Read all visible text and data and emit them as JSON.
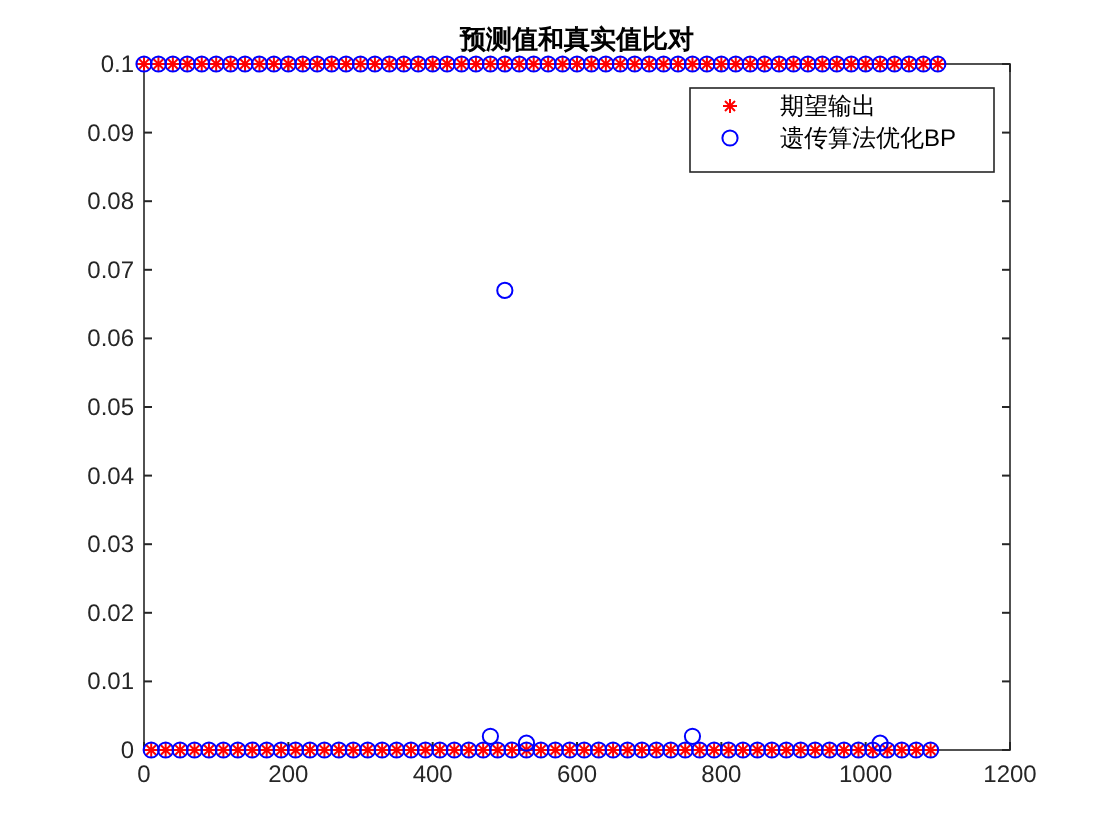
{
  "chart_data": {
    "type": "scatter",
    "title": "预测值和真实值比对",
    "xlim": [
      0,
      1200
    ],
    "xticks": [
      0,
      200,
      400,
      600,
      800,
      1000,
      1200
    ],
    "ylim": [
      0,
      0.1
    ],
    "yticks": [
      {
        "value": 0,
        "label": "0"
      },
      {
        "value": 0.01,
        "label": "0.01"
      },
      {
        "value": 0.02,
        "label": "0.02"
      },
      {
        "value": 0.03,
        "label": "0.03"
      },
      {
        "value": 0.04,
        "label": "0.04"
      },
      {
        "value": 0.05,
        "label": "0.05"
      },
      {
        "value": 0.06,
        "label": "0.06"
      },
      {
        "value": 0.07,
        "label": "0.07"
      },
      {
        "value": 0.08,
        "label": "0.08"
      },
      {
        "value": 0.09,
        "label": "0.09"
      },
      {
        "value": 0.1,
        "label": "0.1"
      }
    ],
    "grid": false,
    "legend": "top right",
    "series": [
      {
        "name": "期望输出",
        "color": "#ff0000",
        "marker": "cross",
        "x": [
          0,
          20,
          40,
          60,
          80,
          100,
          120,
          140,
          160,
          180,
          200,
          220,
          240,
          260,
          280,
          300,
          320,
          340,
          360,
          380,
          400,
          420,
          440,
          460,
          480,
          500,
          520,
          540,
          560,
          580,
          600,
          620,
          640,
          660,
          680,
          700,
          720,
          740,
          760,
          780,
          800,
          820,
          840,
          860,
          880,
          900,
          920,
          940,
          960,
          980,
          1000,
          1020,
          1040,
          1060,
          1080,
          1100,
          10,
          30,
          50,
          70,
          90,
          110,
          130,
          150,
          170,
          190,
          210,
          230,
          250,
          270,
          290,
          310,
          330,
          350,
          370,
          390,
          410,
          430,
          450,
          470,
          490,
          510,
          530,
          550,
          570,
          590,
          610,
          630,
          650,
          670,
          690,
          710,
          730,
          750,
          770,
          790,
          810,
          830,
          850,
          870,
          890,
          910,
          930,
          950,
          970,
          990,
          1010,
          1030,
          1050,
          1070,
          1090
        ],
        "values": [
          0.1,
          0.1,
          0.1,
          0.1,
          0.1,
          0.1,
          0.1,
          0.1,
          0.1,
          0.1,
          0.1,
          0.1,
          0.1,
          0.1,
          0.1,
          0.1,
          0.1,
          0.1,
          0.1,
          0.1,
          0.1,
          0.1,
          0.1,
          0.1,
          0.1,
          0.1,
          0.1,
          0.1,
          0.1,
          0.1,
          0.1,
          0.1,
          0.1,
          0.1,
          0.1,
          0.1,
          0.1,
          0.1,
          0.1,
          0.1,
          0.1,
          0.1,
          0.1,
          0.1,
          0.1,
          0.1,
          0.1,
          0.1,
          0.1,
          0.1,
          0.1,
          0.1,
          0.1,
          0.1,
          0.1,
          0.1,
          0,
          0,
          0,
          0,
          0,
          0,
          0,
          0,
          0,
          0,
          0,
          0,
          0,
          0,
          0,
          0,
          0,
          0,
          0,
          0,
          0,
          0,
          0,
          0,
          0,
          0,
          0,
          0,
          0,
          0,
          0,
          0,
          0,
          0,
          0,
          0,
          0,
          0,
          0,
          0,
          0,
          0,
          0,
          0,
          0,
          0,
          0,
          0,
          0,
          0,
          0,
          0,
          0,
          0,
          0
        ]
      },
      {
        "name": "遗传算法优化BP",
        "color": "#0000ff",
        "marker": "circle",
        "x": [
          0,
          20,
          40,
          60,
          80,
          100,
          120,
          140,
          160,
          180,
          200,
          220,
          240,
          260,
          280,
          300,
          320,
          340,
          360,
          380,
          400,
          420,
          440,
          460,
          480,
          500,
          520,
          540,
          560,
          580,
          600,
          620,
          640,
          660,
          680,
          700,
          720,
          740,
          760,
          780,
          800,
          820,
          840,
          860,
          880,
          900,
          920,
          940,
          960,
          980,
          1000,
          1020,
          1040,
          1060,
          1080,
          1100,
          10,
          30,
          50,
          70,
          90,
          110,
          130,
          150,
          170,
          190,
          210,
          230,
          250,
          270,
          290,
          310,
          330,
          350,
          370,
          390,
          410,
          430,
          450,
          470,
          490,
          510,
          530,
          550,
          570,
          590,
          610,
          630,
          650,
          670,
          690,
          710,
          730,
          750,
          770,
          790,
          810,
          830,
          850,
          870,
          890,
          910,
          930,
          950,
          970,
          990,
          1010,
          1030,
          1050,
          1070,
          1090,
          480,
          500,
          530,
          760,
          1020
        ],
        "values": [
          0.1,
          0.1,
          0.1,
          0.1,
          0.1,
          0.1,
          0.1,
          0.1,
          0.1,
          0.1,
          0.1,
          0.1,
          0.1,
          0.1,
          0.1,
          0.1,
          0.1,
          0.1,
          0.1,
          0.1,
          0.1,
          0.1,
          0.1,
          0.1,
          0.1,
          0.1,
          0.1,
          0.1,
          0.1,
          0.1,
          0.1,
          0.1,
          0.1,
          0.1,
          0.1,
          0.1,
          0.1,
          0.1,
          0.1,
          0.1,
          0.1,
          0.1,
          0.1,
          0.1,
          0.1,
          0.1,
          0.1,
          0.1,
          0.1,
          0.1,
          0.1,
          0.1,
          0.1,
          0.1,
          0.1,
          0.1,
          0,
          0,
          0,
          0,
          0,
          0,
          0,
          0,
          0,
          0,
          0,
          0,
          0,
          0,
          0,
          0,
          0,
          0,
          0,
          0,
          0,
          0,
          0,
          0,
          0,
          0,
          0,
          0,
          0,
          0,
          0,
          0,
          0,
          0,
          0,
          0,
          0,
          0,
          0,
          0,
          0,
          0,
          0,
          0,
          0,
          0,
          0,
          0,
          0,
          0,
          0,
          0,
          0,
          0,
          0,
          0.002,
          0.067,
          0.001,
          0.002,
          0.001
        ]
      }
    ]
  }
}
